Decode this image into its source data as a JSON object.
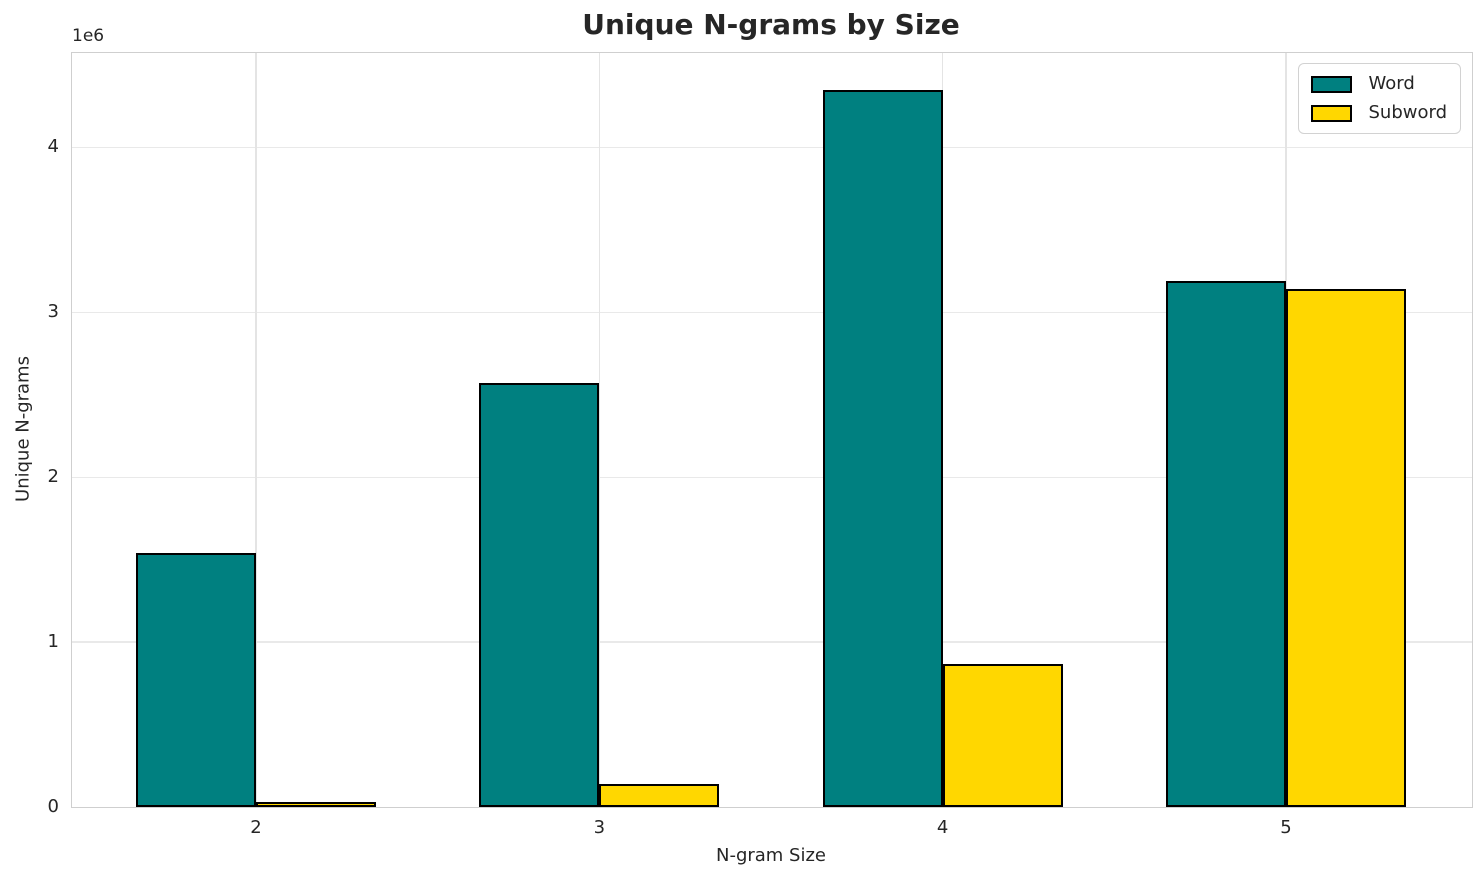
{
  "chart_data": {
    "type": "bar",
    "title": "Unique N-grams by Size",
    "xlabel": "N-gram Size",
    "ylabel": "Unique N-grams",
    "y_offset_text": "1e6",
    "categories": [
      "2",
      "3",
      "4",
      "5"
    ],
    "series": [
      {
        "name": "Word",
        "color": "#008080",
        "values": [
          1540000,
          2570000,
          4350000,
          3190000
        ]
      },
      {
        "name": "Subword",
        "color": "#FFD700",
        "values": [
          30000,
          140000,
          870000,
          3140000
        ]
      }
    ],
    "ylim": [
      0,
      4573000
    ],
    "yticks": [
      0,
      1000000,
      2000000,
      3000000,
      4000000
    ],
    "ytick_labels": [
      "0",
      "1",
      "2",
      "3",
      "4"
    ],
    "grid": true,
    "grid_orientation": "both",
    "legend_position": "upper right",
    "bar_edge_color": "#000000",
    "background_color": "#ffffff"
  }
}
